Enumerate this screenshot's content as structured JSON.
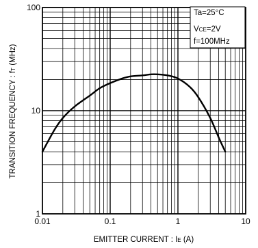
{
  "chart_data": {
    "type": "line",
    "title": "",
    "xscale": "log",
    "yscale": "log",
    "xlim": [
      0.01,
      10
    ],
    "ylim": [
      1,
      100
    ],
    "grid": true,
    "xlabel": {
      "main": "EMITTER  CURRENT : I",
      "sub": "E",
      "unit": " (A)"
    },
    "ylabel": {
      "main": "TRANSITION FREQUENCY : f",
      "sub": "T",
      "unit": " (MHz)"
    },
    "x_ticks": [
      {
        "value": 0.01,
        "label": "0.01"
      },
      {
        "value": 0.1,
        "label": "0.1"
      },
      {
        "value": 1,
        "label": "1"
      },
      {
        "value": 10,
        "label": "10"
      }
    ],
    "y_ticks": [
      {
        "value": 1,
        "label": "1"
      },
      {
        "value": 10,
        "label": "10"
      },
      {
        "value": 100,
        "label": "100"
      }
    ],
    "conditions": [
      {
        "main": "Ta=25°C",
        "sub": "",
        "tail": ""
      },
      {
        "main": "V",
        "sub": "CE",
        "tail": "=2V"
      },
      {
        "main": "f=100MHz",
        "sub": "",
        "tail": ""
      }
    ],
    "series": [
      {
        "x": [
          0.01,
          0.015,
          0.02,
          0.03,
          0.05,
          0.07,
          0.1,
          0.15,
          0.2,
          0.3,
          0.4,
          0.5,
          0.7,
          1.0,
          1.5,
          2.0,
          3.0,
          4.0,
          5.0
        ],
        "y": [
          4.0,
          6.5,
          8.5,
          11.0,
          14.0,
          16.5,
          18.5,
          20.5,
          21.5,
          22.0,
          22.5,
          22.5,
          22.0,
          20.5,
          17.0,
          13.5,
          8.5,
          5.5,
          4.0
        ]
      }
    ]
  }
}
